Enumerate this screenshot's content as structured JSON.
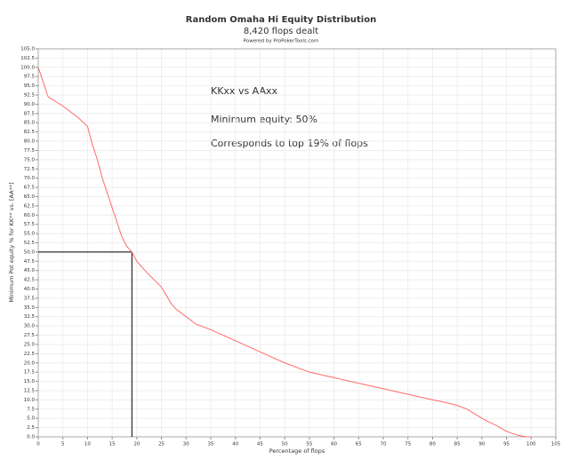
{
  "chart_data": {
    "type": "line",
    "title": "Random Omaha Hi Equity Distribution",
    "subtitle": "8,420 flops dealt",
    "credit": "Powered by ProPokerTools.com",
    "xlabel": "Percentage of flops",
    "ylabel": "Minimum Pot equity % for KK** vs. [AA**]",
    "annotations": [
      "KKxx vs AAxx",
      "Minimum equity: 50%",
      "Corresponds to top 19% of flops"
    ],
    "reference": {
      "x": 19,
      "y": 50
    },
    "grid": true,
    "x": [
      0,
      1,
      2,
      5,
      8,
      10,
      11,
      12,
      13,
      14,
      15,
      16,
      17,
      18,
      19,
      20,
      22,
      25,
      27,
      28,
      30,
      32,
      35,
      40,
      45,
      50,
      55,
      60,
      65,
      70,
      75,
      80,
      82,
      85,
      87,
      90,
      93,
      95,
      97,
      99,
      100
    ],
    "series": [
      {
        "color": "#ff6a6a",
        "values": [
          100,
          96,
          92,
          89.5,
          86.5,
          84,
          79,
          75,
          70,
          66,
          62,
          58,
          54,
          51.5,
          50,
          47.5,
          44.5,
          40.5,
          36,
          34.5,
          32.5,
          30.5,
          29,
          26,
          23,
          20,
          17.5,
          16,
          14.5,
          13,
          11.5,
          10,
          9.5,
          8.5,
          7.5,
          5,
          3,
          1.5,
          0.5,
          0,
          0
        ]
      }
    ],
    "xlim": [
      0,
      105
    ],
    "xticks": [
      0,
      5,
      10,
      15,
      20,
      25,
      30,
      35,
      40,
      45,
      50,
      55,
      60,
      65,
      70,
      75,
      80,
      85,
      90,
      95,
      100,
      105
    ],
    "ylim": [
      0,
      105
    ],
    "yticks": [
      {
        "value": 0,
        "label": "0.0"
      },
      2.5,
      {
        "value": 5,
        "label": "5.0"
      },
      7.5,
      {
        "value": 10,
        "label": "10.0"
      },
      12.5,
      {
        "value": 15,
        "label": "15.0"
      },
      17.5,
      {
        "value": 20,
        "label": "20.0"
      },
      22.5,
      {
        "value": 25,
        "label": "25.0"
      },
      27.5,
      {
        "value": 30,
        "label": "30.0"
      },
      32.5,
      {
        "value": 35,
        "label": "35.0"
      },
      37.5,
      {
        "value": 40,
        "label": "40.0"
      },
      42.5,
      {
        "value": 45,
        "label": "45.0"
      },
      47.5,
      {
        "value": 50,
        "label": "50.0"
      },
      52.5,
      {
        "value": 55,
        "label": "55.0"
      },
      57.5,
      {
        "value": 60,
        "label": "60.0"
      },
      62.5,
      {
        "value": 65,
        "label": "65.0"
      },
      67.5,
      {
        "value": 70,
        "label": "70.0"
      },
      72.5,
      {
        "value": 75,
        "label": "75.0"
      },
      77.5,
      {
        "value": 80,
        "label": "80.0"
      },
      82.5,
      {
        "value": 85,
        "label": "85.0"
      },
      87.5,
      {
        "value": 90,
        "label": "90.0"
      },
      92.5,
      {
        "value": 95,
        "label": "95.0"
      },
      97.5,
      {
        "value": 100,
        "label": "100.0"
      },
      102.5,
      {
        "value": 105,
        "label": "105.0"
      }
    ]
  }
}
